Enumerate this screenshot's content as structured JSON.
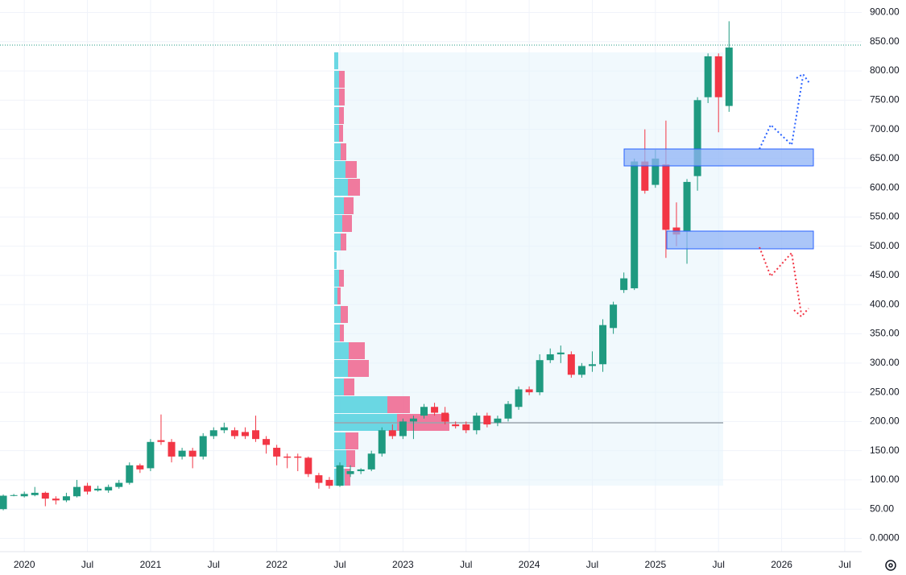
{
  "chart_data": {
    "type": "candlestick",
    "x": [
      "2019-11",
      "2019-12",
      "2020-01",
      "2020-02",
      "2020-03",
      "2020-04",
      "2020-05",
      "2020-06",
      "2020-07",
      "2020-08",
      "2020-09",
      "2020-10",
      "2020-11",
      "2020-12",
      "2021-01",
      "2021-02",
      "2021-03",
      "2021-04",
      "2021-05",
      "2021-06",
      "2021-07",
      "2021-08",
      "2021-09",
      "2021-10",
      "2021-11",
      "2021-12",
      "2022-01",
      "2022-02",
      "2022-03",
      "2022-04",
      "2022-05",
      "2022-06",
      "2022-07",
      "2022-08",
      "2022-09",
      "2022-10",
      "2022-11",
      "2022-12",
      "2023-01",
      "2023-02",
      "2023-03",
      "2023-04",
      "2023-05",
      "2023-06",
      "2023-07",
      "2023-08",
      "2023-09",
      "2023-10",
      "2023-11",
      "2023-12",
      "2024-01",
      "2024-02",
      "2024-03",
      "2024-04",
      "2024-05",
      "2024-06",
      "2024-07",
      "2024-08",
      "2024-09",
      "2024-10",
      "2024-11",
      "2024-12",
      "2025-01",
      "2025-02",
      "2025-03",
      "2025-04",
      "2025-05",
      "2025-06",
      "2025-07",
      "2025-08"
    ],
    "open": [
      50,
      73,
      72,
      74,
      78,
      68,
      65,
      72,
      90,
      82,
      82,
      88,
      95,
      125,
      120,
      168,
      165,
      140,
      150,
      140,
      175,
      185,
      185,
      182,
      185,
      170,
      155,
      140,
      140,
      138,
      108,
      100,
      90,
      110,
      115,
      118,
      145,
      185,
      175,
      200,
      210,
      225,
      215,
      195,
      195,
      185,
      210,
      198,
      205,
      225,
      255,
      250,
      305,
      315,
      315,
      280,
      295,
      298,
      360,
      425,
      428,
      645,
      605,
      640,
      532,
      525,
      620,
      755,
      825,
      740
    ],
    "high": [
      75,
      76,
      80,
      88,
      80,
      72,
      78,
      100,
      95,
      90,
      92,
      100,
      130,
      128,
      170,
      212,
      170,
      155,
      155,
      180,
      190,
      198,
      190,
      190,
      210,
      175,
      160,
      145,
      145,
      140,
      112,
      105,
      130,
      125,
      120,
      150,
      190,
      195,
      205,
      210,
      230,
      232,
      225,
      200,
      200,
      215,
      215,
      210,
      235,
      260,
      260,
      315,
      325,
      330,
      320,
      300,
      320,
      375,
      405,
      455,
      650,
      700,
      665,
      715,
      575,
      615,
      755,
      830,
      830,
      885
    ],
    "low": [
      48,
      72,
      70,
      72,
      55,
      58,
      62,
      70,
      75,
      80,
      78,
      85,
      92,
      112,
      115,
      160,
      130,
      135,
      120,
      135,
      170,
      180,
      170,
      170,
      165,
      145,
      125,
      120,
      115,
      105,
      85,
      85,
      88,
      105,
      110,
      115,
      140,
      170,
      170,
      170,
      205,
      210,
      195,
      188,
      180,
      178,
      190,
      192,
      200,
      220,
      245,
      245,
      300,
      300,
      275,
      275,
      285,
      285,
      350,
      420,
      425,
      590,
      600,
      480,
      500,
      470,
      595,
      745,
      695,
      730
    ],
    "close": [
      73,
      74,
      76,
      78,
      68,
      65,
      72,
      88,
      80,
      85,
      88,
      95,
      125,
      118,
      165,
      165,
      140,
      150,
      140,
      175,
      185,
      190,
      175,
      175,
      170,
      160,
      140,
      138,
      138,
      110,
      95,
      90,
      125,
      115,
      118,
      145,
      185,
      175,
      200,
      205,
      225,
      215,
      200,
      192,
      185,
      210,
      195,
      205,
      230,
      255,
      250,
      305,
      315,
      318,
      280,
      295,
      298,
      365,
      400,
      445,
      645,
      595,
      650,
      528,
      520,
      610,
      750,
      825,
      755,
      840
    ],
    "up_color": "#1f9a80",
    "down_color": "#f23645",
    "xlim": [
      "2019-10",
      "2026-08"
    ],
    "xticks": [
      {
        "value": "2020-01",
        "label": "2020"
      },
      {
        "value": "2020-07",
        "label": "Jul"
      },
      {
        "value": "2021-01",
        "label": "2021"
      },
      {
        "value": "2021-07",
        "label": "Jul"
      },
      {
        "value": "2022-01",
        "label": "2022"
      },
      {
        "value": "2022-07",
        "label": "Jul"
      },
      {
        "value": "2023-01",
        "label": "2023"
      },
      {
        "value": "2023-07",
        "label": "Jul"
      },
      {
        "value": "2024-01",
        "label": "2024"
      },
      {
        "value": "2024-07",
        "label": "Jul"
      },
      {
        "value": "2025-01",
        "label": "2025"
      },
      {
        "value": "2025-07",
        "label": "Jul"
      },
      {
        "value": "2026-01",
        "label": "2026"
      },
      {
        "value": "2026-07",
        "label": "Jul"
      }
    ],
    "ylim": [
      -20,
      920
    ],
    "yticks": [
      {
        "value": 900,
        "label": "900.00"
      },
      {
        "value": 850,
        "label": "850.00"
      },
      {
        "value": 800,
        "label": "800.00"
      },
      {
        "value": 750,
        "label": "750.00"
      },
      {
        "value": 700,
        "label": "700.00"
      },
      {
        "value": 650,
        "label": "650.00"
      },
      {
        "value": 600,
        "label": "600.00"
      },
      {
        "value": 550,
        "label": "550.00"
      },
      {
        "value": 500,
        "label": "500.00"
      },
      {
        "value": 450,
        "label": "450.00"
      },
      {
        "value": 400,
        "label": "400.00"
      },
      {
        "value": 350,
        "label": "350.00"
      },
      {
        "value": 300,
        "label": "300.00"
      },
      {
        "value": 250,
        "label": "250.00"
      },
      {
        "value": 200,
        "label": "200.00"
      },
      {
        "value": 150,
        "label": "150.00"
      },
      {
        "value": 100,
        "label": "100.00"
      },
      {
        "value": 50,
        "label": "50.00"
      },
      {
        "value": 0,
        "label": "0.0000"
      }
    ],
    "grid": true
  }
}
